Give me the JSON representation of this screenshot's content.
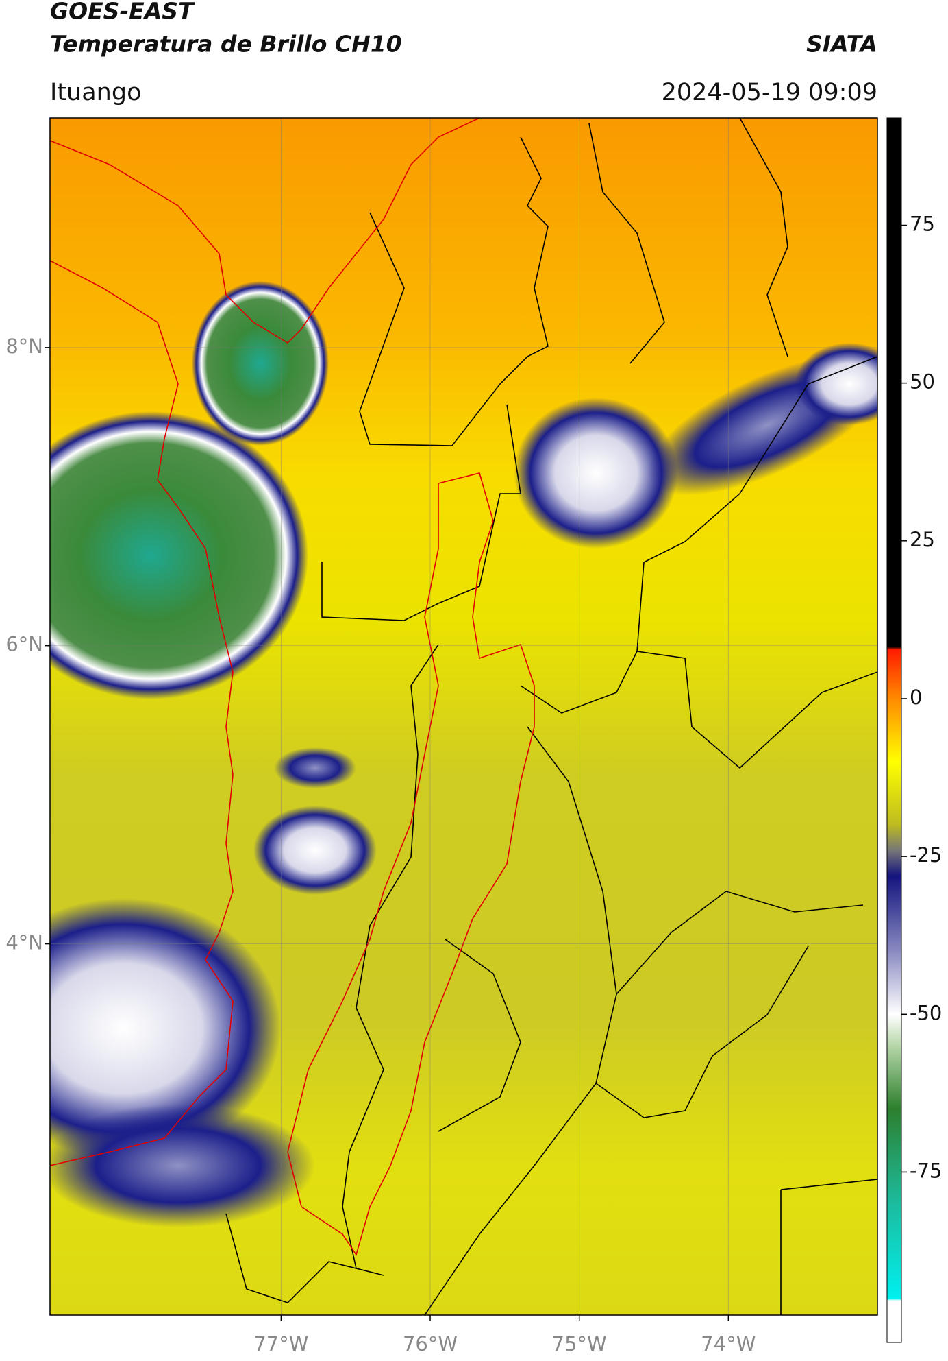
{
  "header": {
    "title_line1": "GOES-EAST",
    "title_line2": "Temperatura de Brillo CH10",
    "organization": "SIATA",
    "region": "Ituango",
    "datetime": "2024-05-19 09:09"
  },
  "map": {
    "lat_lim": [
      1.51,
      9.54
    ],
    "lon_lim": [
      -78.55,
      -73.0
    ],
    "lat_ticks": [
      {
        "value": 8,
        "label": "8°N"
      },
      {
        "value": 6,
        "label": "6°N"
      },
      {
        "value": 4,
        "label": "4°N"
      }
    ],
    "lon_ticks": [
      {
        "value": -77,
        "label": "77°W"
      },
      {
        "value": -76,
        "label": "76°W"
      },
      {
        "value": -75,
        "label": "75°W"
      },
      {
        "value": -74,
        "label": "74°W"
      }
    ]
  },
  "colorbar": {
    "lim": [
      -102,
      92
    ],
    "ticks": [
      75,
      50,
      25,
      0,
      -25,
      -50,
      -75
    ]
  }
}
